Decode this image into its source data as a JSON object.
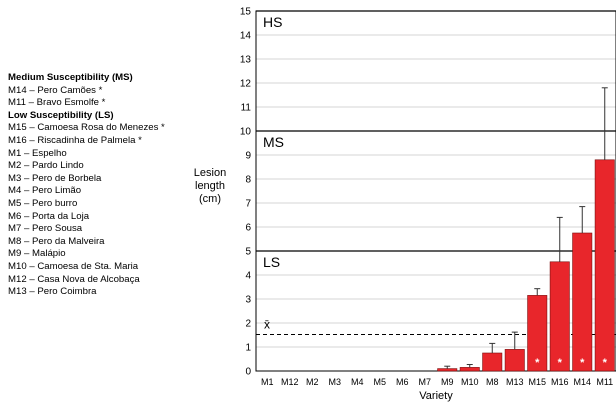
{
  "legend": {
    "groups": [
      {
        "heading": "Medium Susceptibility (MS)",
        "items": [
          "M14 – Pero Camões *",
          "M11 – Bravo Esmolfe *"
        ]
      },
      {
        "heading": "Low Susceptibility (LS)",
        "items": [
          "M15 – Camoesa Rosa do Menezes *",
          "M16 – Riscadinha de Palmela *",
          "M1 – Espelho",
          "M2 – Pardo Lindo",
          "M3 – Pero de Borbela",
          "M4 – Pero Limão",
          "M5 – Pero burro",
          "M6 – Porta da Loja",
          "M7 – Pero Sousa",
          "M8 – Pero da Malveira",
          "M9 – Malápio",
          "M10 – Camoesa de Sta. Maria",
          "M12 – Casa Nova de Alcobaça",
          "M13 – Pero Coimbra"
        ]
      }
    ]
  },
  "chart_data": {
    "type": "bar",
    "xlabel": "Variety",
    "ylabel": "Lesion length (cm)",
    "ylabel_lines": [
      "Lesion",
      "length",
      "(cm)"
    ],
    "ylim": [
      0,
      15
    ],
    "yticks": [
      0,
      1,
      2,
      3,
      4,
      5,
      6,
      7,
      8,
      9,
      10,
      11,
      12,
      13,
      14,
      15
    ],
    "grid": true,
    "categories": [
      "M1",
      "M12",
      "M2",
      "M3",
      "M4",
      "M5",
      "M6",
      "M7",
      "M9",
      "M10",
      "M8",
      "M13",
      "M15",
      "M16",
      "M14",
      "M11"
    ],
    "values": [
      0,
      0,
      0,
      0,
      0,
      0,
      0,
      0,
      0.1,
      0.15,
      0.75,
      0.9,
      3.15,
      4.55,
      5.75,
      8.8
    ],
    "errors": [
      0,
      0,
      0,
      0,
      0,
      0,
      0,
      0,
      0.1,
      0.12,
      0.4,
      0.72,
      0.28,
      1.85,
      1.1,
      3.0
    ],
    "significant_marker": "*",
    "significant": [
      false,
      false,
      false,
      false,
      false,
      false,
      false,
      false,
      false,
      false,
      false,
      false,
      true,
      true,
      true,
      true
    ],
    "bar_color": "#e8262b",
    "thresholds": [
      {
        "label": "LS",
        "value": 5
      },
      {
        "label": "MS",
        "value": 10
      },
      {
        "label": "HS",
        "value": 15
      }
    ],
    "mean": {
      "label": "x̄",
      "value": 1.52
    }
  }
}
